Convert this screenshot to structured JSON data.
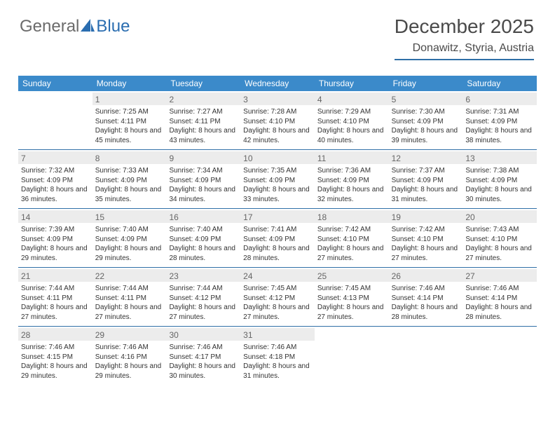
{
  "logo": {
    "part1": "General",
    "part2": "Blue"
  },
  "title": "December 2025",
  "subtitle": "Donawitz, Styria, Austria",
  "colors": {
    "header_bg": "#3b8aca",
    "header_text": "#ffffff",
    "rule": "#2f6fa7",
    "daynum_bg": "#ececec",
    "logo_gray": "#6b6b6b",
    "logo_blue": "#2a6db0"
  },
  "weekdays": [
    "Sunday",
    "Monday",
    "Tuesday",
    "Wednesday",
    "Thursday",
    "Friday",
    "Saturday"
  ],
  "weeks": [
    [
      {
        "n": "",
        "r": "",
        "s": "",
        "d": ""
      },
      {
        "n": "1",
        "r": "Sunrise: 7:25 AM",
        "s": "Sunset: 4:11 PM",
        "d": "Daylight: 8 hours and 45 minutes."
      },
      {
        "n": "2",
        "r": "Sunrise: 7:27 AM",
        "s": "Sunset: 4:11 PM",
        "d": "Daylight: 8 hours and 43 minutes."
      },
      {
        "n": "3",
        "r": "Sunrise: 7:28 AM",
        "s": "Sunset: 4:10 PM",
        "d": "Daylight: 8 hours and 42 minutes."
      },
      {
        "n": "4",
        "r": "Sunrise: 7:29 AM",
        "s": "Sunset: 4:10 PM",
        "d": "Daylight: 8 hours and 40 minutes."
      },
      {
        "n": "5",
        "r": "Sunrise: 7:30 AM",
        "s": "Sunset: 4:09 PM",
        "d": "Daylight: 8 hours and 39 minutes."
      },
      {
        "n": "6",
        "r": "Sunrise: 7:31 AM",
        "s": "Sunset: 4:09 PM",
        "d": "Daylight: 8 hours and 38 minutes."
      }
    ],
    [
      {
        "n": "7",
        "r": "Sunrise: 7:32 AM",
        "s": "Sunset: 4:09 PM",
        "d": "Daylight: 8 hours and 36 minutes."
      },
      {
        "n": "8",
        "r": "Sunrise: 7:33 AM",
        "s": "Sunset: 4:09 PM",
        "d": "Daylight: 8 hours and 35 minutes."
      },
      {
        "n": "9",
        "r": "Sunrise: 7:34 AM",
        "s": "Sunset: 4:09 PM",
        "d": "Daylight: 8 hours and 34 minutes."
      },
      {
        "n": "10",
        "r": "Sunrise: 7:35 AM",
        "s": "Sunset: 4:09 PM",
        "d": "Daylight: 8 hours and 33 minutes."
      },
      {
        "n": "11",
        "r": "Sunrise: 7:36 AM",
        "s": "Sunset: 4:09 PM",
        "d": "Daylight: 8 hours and 32 minutes."
      },
      {
        "n": "12",
        "r": "Sunrise: 7:37 AM",
        "s": "Sunset: 4:09 PM",
        "d": "Daylight: 8 hours and 31 minutes."
      },
      {
        "n": "13",
        "r": "Sunrise: 7:38 AM",
        "s": "Sunset: 4:09 PM",
        "d": "Daylight: 8 hours and 30 minutes."
      }
    ],
    [
      {
        "n": "14",
        "r": "Sunrise: 7:39 AM",
        "s": "Sunset: 4:09 PM",
        "d": "Daylight: 8 hours and 29 minutes."
      },
      {
        "n": "15",
        "r": "Sunrise: 7:40 AM",
        "s": "Sunset: 4:09 PM",
        "d": "Daylight: 8 hours and 29 minutes."
      },
      {
        "n": "16",
        "r": "Sunrise: 7:40 AM",
        "s": "Sunset: 4:09 PM",
        "d": "Daylight: 8 hours and 28 minutes."
      },
      {
        "n": "17",
        "r": "Sunrise: 7:41 AM",
        "s": "Sunset: 4:09 PM",
        "d": "Daylight: 8 hours and 28 minutes."
      },
      {
        "n": "18",
        "r": "Sunrise: 7:42 AM",
        "s": "Sunset: 4:10 PM",
        "d": "Daylight: 8 hours and 27 minutes."
      },
      {
        "n": "19",
        "r": "Sunrise: 7:42 AM",
        "s": "Sunset: 4:10 PM",
        "d": "Daylight: 8 hours and 27 minutes."
      },
      {
        "n": "20",
        "r": "Sunrise: 7:43 AM",
        "s": "Sunset: 4:10 PM",
        "d": "Daylight: 8 hours and 27 minutes."
      }
    ],
    [
      {
        "n": "21",
        "r": "Sunrise: 7:44 AM",
        "s": "Sunset: 4:11 PM",
        "d": "Daylight: 8 hours and 27 minutes."
      },
      {
        "n": "22",
        "r": "Sunrise: 7:44 AM",
        "s": "Sunset: 4:11 PM",
        "d": "Daylight: 8 hours and 27 minutes."
      },
      {
        "n": "23",
        "r": "Sunrise: 7:44 AM",
        "s": "Sunset: 4:12 PM",
        "d": "Daylight: 8 hours and 27 minutes."
      },
      {
        "n": "24",
        "r": "Sunrise: 7:45 AM",
        "s": "Sunset: 4:12 PM",
        "d": "Daylight: 8 hours and 27 minutes."
      },
      {
        "n": "25",
        "r": "Sunrise: 7:45 AM",
        "s": "Sunset: 4:13 PM",
        "d": "Daylight: 8 hours and 27 minutes."
      },
      {
        "n": "26",
        "r": "Sunrise: 7:46 AM",
        "s": "Sunset: 4:14 PM",
        "d": "Daylight: 8 hours and 28 minutes."
      },
      {
        "n": "27",
        "r": "Sunrise: 7:46 AM",
        "s": "Sunset: 4:14 PM",
        "d": "Daylight: 8 hours and 28 minutes."
      }
    ],
    [
      {
        "n": "28",
        "r": "Sunrise: 7:46 AM",
        "s": "Sunset: 4:15 PM",
        "d": "Daylight: 8 hours and 29 minutes."
      },
      {
        "n": "29",
        "r": "Sunrise: 7:46 AM",
        "s": "Sunset: 4:16 PM",
        "d": "Daylight: 8 hours and 29 minutes."
      },
      {
        "n": "30",
        "r": "Sunrise: 7:46 AM",
        "s": "Sunset: 4:17 PM",
        "d": "Daylight: 8 hours and 30 minutes."
      },
      {
        "n": "31",
        "r": "Sunrise: 7:46 AM",
        "s": "Sunset: 4:18 PM",
        "d": "Daylight: 8 hours and 31 minutes."
      },
      {
        "n": "",
        "r": "",
        "s": "",
        "d": ""
      },
      {
        "n": "",
        "r": "",
        "s": "",
        "d": ""
      },
      {
        "n": "",
        "r": "",
        "s": "",
        "d": ""
      }
    ]
  ]
}
